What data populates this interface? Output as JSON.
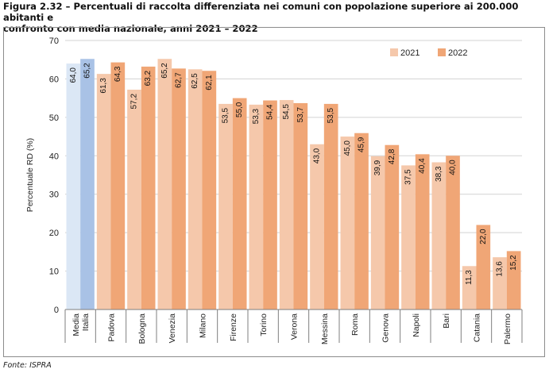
{
  "figure": {
    "title_line1": "Figura 2.32 – Percentuali di raccolta differenziata nei comuni con popolazione superiore ai 200.000 abitanti e",
    "title_line2": "confronto con media nazionale, anni 2021 – 2022",
    "source": "Fonte: ISPRA"
  },
  "chart_data": {
    "type": "bar",
    "title": "Percentuali di raccolta differenziata nei comuni con popolazione superiore ai 200.000 abitanti e confronto con media nazionale, anni 2021 – 2022",
    "ylabel": "Percentuale RD (%)",
    "xlabel": "",
    "ylim": [
      0,
      70
    ],
    "yticks": [
      0,
      10,
      20,
      30,
      40,
      50,
      60,
      70
    ],
    "grid": true,
    "legend_position": "top-right",
    "categories": [
      "Media Italia",
      "Padova",
      "Bologna",
      "Venezia",
      "Milano",
      "Firenze",
      "Torino",
      "Verona",
      "Messina",
      "Roma",
      "Genova",
      "Napoli",
      "Bari",
      "Catania",
      "Palermo"
    ],
    "category_lines": [
      [
        "Media",
        "Italia"
      ],
      [
        "Padova"
      ],
      [
        "Bologna"
      ],
      [
        "Venezia"
      ],
      [
        "Milano"
      ],
      [
        "Firenze"
      ],
      [
        "Torino"
      ],
      [
        "Verona"
      ],
      [
        "Messina"
      ],
      [
        "Roma"
      ],
      [
        "Genova"
      ],
      [
        "Napoli"
      ],
      [
        "Bari"
      ],
      [
        "Catania"
      ],
      [
        "Palermo"
      ]
    ],
    "series": [
      {
        "name": "2021",
        "color": "#f5c8ab",
        "highlight_color": "#dbe7f5",
        "values": [
          64.0,
          61.3,
          57.2,
          65.2,
          62.5,
          53.5,
          53.3,
          54.5,
          43.0,
          45.0,
          39.9,
          37.5,
          38.3,
          11.3,
          13.6
        ],
        "labels": [
          "64,0",
          "61,3",
          "57,2",
          "65,2",
          "62,5",
          "53,5",
          "53,3",
          "54,5",
          "43,0",
          "45,0",
          "39,9",
          "37,5",
          "38,3",
          "11,3",
          "13,6"
        ]
      },
      {
        "name": "2022",
        "color": "#f0a676",
        "highlight_color": "#a9c2e6",
        "values": [
          65.2,
          64.3,
          63.2,
          62.7,
          62.1,
          55.0,
          54.4,
          53.7,
          53.5,
          45.9,
          42.8,
          40.4,
          40.0,
          22.0,
          15.2
        ],
        "labels": [
          "65,2",
          "64,3",
          "63,2",
          "62,7",
          "62,1",
          "55,0",
          "54,4",
          "53,7",
          "53,5",
          "45,9",
          "42,8",
          "40,4",
          "40,0",
          "22,0",
          "15,2"
        ]
      }
    ],
    "highlighted_category": "Media Italia",
    "grid_color": "#d3d3d3",
    "axis_color": "#7f7f7f"
  }
}
